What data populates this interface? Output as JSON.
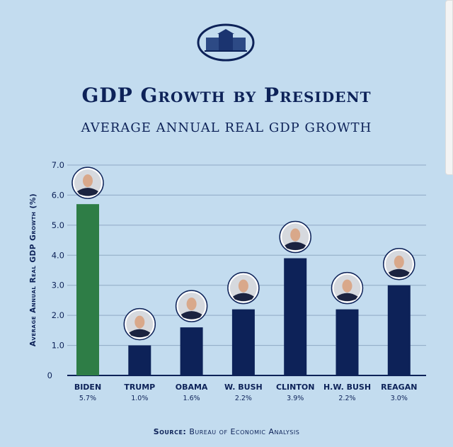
{
  "title": "GDP Growth by President",
  "subtitle": "AVERAGE ANNUAL REAL GDP GROWTH",
  "source_label": "Source:",
  "source_text": "Bureau of Economic Analysis",
  "colors": {
    "background": "#c3dcef",
    "navy": "#0d2258",
    "green": "#2e7d46"
  },
  "chart_data": {
    "type": "bar",
    "ylabel": "Average Annual Real GDP Growth (%)",
    "ylim": [
      0,
      7
    ],
    "yticks": [
      "0",
      "1.0",
      "2.0",
      "3.0",
      "4.0",
      "5.0",
      "6.0",
      "7.0"
    ],
    "grid": true,
    "categories": [
      "BIDEN",
      "TRUMP",
      "OBAMA",
      "W. BUSH",
      "CLINTON",
      "H.W. BUSH",
      "REAGAN"
    ],
    "values": [
      5.7,
      1.0,
      1.6,
      2.2,
      3.9,
      2.2,
      3.0
    ],
    "value_labels": [
      "5.7%",
      "1.0%",
      "1.6%",
      "2.2%",
      "3.9%",
      "2.2%",
      "3.0%"
    ],
    "bar_colors": [
      "#2e7d46",
      "#0d2258",
      "#0d2258",
      "#0d2258",
      "#0d2258",
      "#0d2258",
      "#0d2258"
    ]
  }
}
